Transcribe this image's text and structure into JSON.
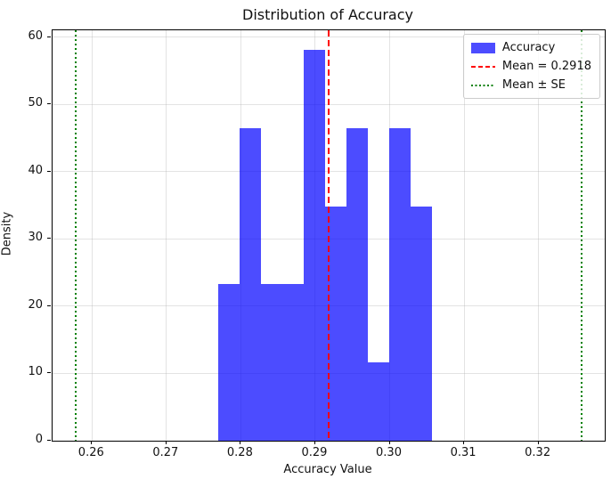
{
  "chart_data": {
    "type": "bar",
    "subtype": "histogram",
    "title": "Distribution of Accuracy",
    "xlabel": "Accuracy Value",
    "ylabel": "Density",
    "xlim": [
      0.2547,
      0.3289
    ],
    "ylim": [
      0,
      61
    ],
    "grid": true,
    "legend_position": "upper right",
    "x_ticks": [
      {
        "value": 0.26,
        "label": "0.26"
      },
      {
        "value": 0.27,
        "label": "0.27"
      },
      {
        "value": 0.28,
        "label": "0.28"
      },
      {
        "value": 0.29,
        "label": "0.29"
      },
      {
        "value": 0.3,
        "label": "0.30"
      },
      {
        "value": 0.31,
        "label": "0.31"
      },
      {
        "value": 0.32,
        "label": "0.32"
      }
    ],
    "y_ticks": [
      {
        "value": 0,
        "label": "0"
      },
      {
        "value": 10,
        "label": "10"
      },
      {
        "value": 20,
        "label": "20"
      },
      {
        "value": 30,
        "label": "30"
      },
      {
        "value": 40,
        "label": "40"
      },
      {
        "value": 50,
        "label": "50"
      },
      {
        "value": 60,
        "label": "60"
      }
    ],
    "histogram": {
      "series_name": "Accuracy",
      "bin_start": 0.277,
      "bin_width": 0.002868,
      "densities": [
        23.24,
        46.49,
        23.24,
        23.24,
        58.11,
        34.86,
        46.49,
        11.62,
        46.49,
        34.86
      ],
      "counts": [
        2,
        4,
        2,
        2,
        5,
        3,
        4,
        1,
        4,
        3
      ],
      "n_samples": 30,
      "fill_color": "#0000ff",
      "fill_alpha": 0.7
    },
    "mean_line": {
      "x": 0.2918,
      "color": "#ff0000",
      "style": "dashed",
      "label": "Mean = 0.2918"
    },
    "se_lines": {
      "x_values": [
        0.2578,
        0.3258
      ],
      "color": "#008000",
      "style": "dotted",
      "label": "Mean ± SE"
    },
    "legend": {
      "items": [
        {
          "label": "Accuracy",
          "swatch": "patch",
          "color": "#0000ff"
        },
        {
          "label": "Mean = 0.2918",
          "swatch": "dashed-line",
          "color": "#ff0000"
        },
        {
          "label": "Mean ± SE",
          "swatch": "dotted-line",
          "color": "#008000"
        }
      ]
    }
  }
}
